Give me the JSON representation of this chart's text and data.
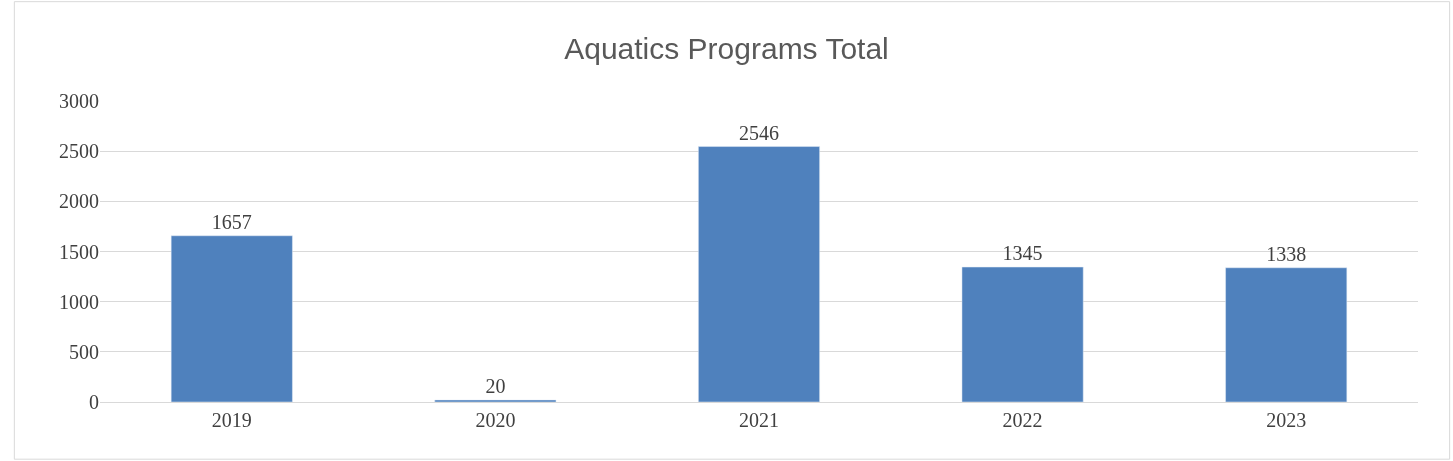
{
  "chart_data": {
    "type": "bar",
    "title": "Aquatics Programs Total",
    "categories": [
      "2019",
      "2020",
      "2021",
      "2022",
      "2023"
    ],
    "values": [
      1657,
      20,
      2546,
      1345,
      1338
    ],
    "color": "#4f81bd",
    "ylim": [
      0,
      3000
    ],
    "yticks": [
      0,
      500,
      1000,
      1500,
      2000,
      2500,
      3000
    ],
    "grid": "y",
    "data_labels": true,
    "legend": false
  }
}
